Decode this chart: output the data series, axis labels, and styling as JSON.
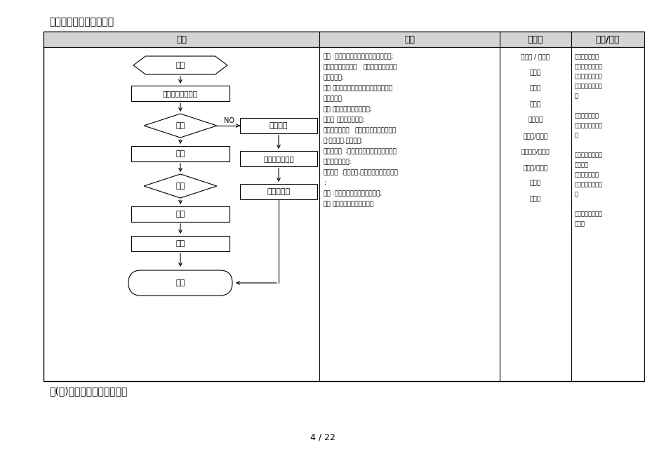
{
  "title": "进料工作流程图（品管）",
  "subtitle": "原(辅)料领用、退库工作流程",
  "page": "4 / 22",
  "col_headers": [
    "流程",
    "叙述",
    "负责人",
    "记录/参考"
  ],
  "bg_color": "#ffffff",
  "header_fill": "#d9d9d9",
  "border_color": "#000000",
  "flow_shapes": {
    "jinliao": "进料",
    "chakan": "查看产品检验报告",
    "panding": "判定",
    "hege1": "合格",
    "choucha": "抽检",
    "hege2": "合格",
    "rucang": "入仓",
    "cundang": "存档",
    "tongzhi": "通知主管",
    "zhihui_ck": "知会仓库，退货",
    "zhihui_cg": "知会采购部",
    "no_label": "NO"
  },
  "desc_lines": [
    {
      "bold": "进料",
      "normal": ":收到仓库的送检通知单，准备验收;"
    },
    {
      "bold": "查看产品的检验报告",
      "normal": "：要求供应商提供产"
    },
    {
      "bold": "",
      "normal": "品检验报告;"
    },
    {
      "bold": "判定",
      "normal": "：检查产品检验报告上的各指标是否"
    },
    {
      "bold": "",
      "normal": "符合要求；"
    },
    {
      "bold": "合格",
      "normal": "：报告合格再抽样检验;"
    },
    {
      "bold": "不合格",
      "normal": "：通知品管主管;"
    },
    {
      "bold": "知会仓库，退货",
      "normal": "：在送检通知单填写不合"
    },
    {
      "bold": "",
      "normal": "格:交予仓库,退货处理;"
    },
    {
      "bold": "知会采购部",
      "normal": ":与采购部沟通该供应商提供该"
    },
    {
      "bold": "",
      "normal": "批次产品的问题;"
    },
    {
      "bold": "抽检合格",
      "normal": ":抽检合格,填写送检单，交予仓库"
    },
    {
      "bold": "",
      "normal": ";"
    },
    {
      "bold": "入仓",
      "normal": ":仓库接到送检单，安排入仓;"
    },
    {
      "bold": "存档",
      "normal": "：所有文件检验记录存档"
    }
  ],
  "resp_lines": [
    "仓管员 / 检验员",
    "检验员",
    "检验员",
    "检验员",
    "品管主管",
    "检验员/仓管员",
    "品管主管/供应部",
    "检验员/仓管员",
    "仓管员",
    "检验员"
  ],
  "rec_lines": [
    [
      "《送检通知单》"
    ],
    [
      "《产品检验报告》"
    ],
    [
      "《产品检验报告》"
    ],
    [
      "《原材料内控标准",
      "》"
    ],
    [
      ""
    ],
    [
      "《送检通知单》"
    ],
    [
      "《质量内部联络单",
      "》"
    ],
    [
      ""
    ],
    [
      "《供应商每批供应",
      "记录表》"
    ],
    [
      "《送检通知书》"
    ],
    [
      "《原材料检验报告",
      "》"
    ],
    [
      ""
    ],
    [
      "《每月原材料质量",
      "统计》"
    ]
  ]
}
